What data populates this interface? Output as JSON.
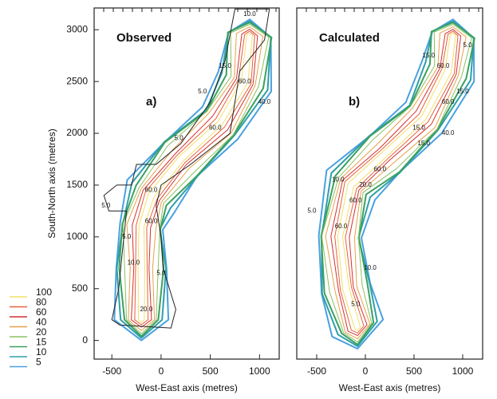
{
  "chart_data": [
    {
      "type": "contour",
      "title": "Observed",
      "panel_label": "a)",
      "xlabel": "West-East axis (metres)",
      "ylabel": "South-North axis (metres)",
      "xlim": [
        -680,
        1200
      ],
      "ylim": [
        -180,
        3210
      ],
      "xticks": [
        -500,
        0,
        500,
        1000
      ],
      "yticks": [
        0,
        500,
        1000,
        1500,
        2000,
        2500,
        3000
      ],
      "contour_labels": [
        "10.0",
        "15.0",
        "60.0",
        "40.0",
        "5.0",
        "5.0",
        "60.0",
        "60.0",
        "5.0",
        "60.0",
        "5.0",
        "10.0",
        "5.0",
        "20.0"
      ]
    },
    {
      "type": "contour",
      "title": "Calculated",
      "panel_label": "b)",
      "xlabel": "West-East axis (metres)",
      "xlim": [
        -705,
        1205
      ],
      "ylim": [
        -180,
        3210
      ],
      "xticks": [
        -500,
        0,
        500,
        1000
      ],
      "contour_labels": [
        "15.0",
        "5.0",
        "60.0",
        "60.0",
        "15.0",
        "15.0",
        "40.0",
        "15.0",
        "60.0",
        "20.0",
        "10.0",
        "5.0",
        "60.0",
        "60.0",
        "10.0",
        "5.0"
      ]
    }
  ],
  "legend": {
    "levels": [
      100,
      80,
      60,
      40,
      20,
      15,
      10,
      5
    ],
    "colors": [
      "#f2e06a",
      "#e8603c",
      "#d42f2f",
      "#e8a04a",
      "#8ac060",
      "#3aa060",
      "#2f9fa8",
      "#4aa0e0"
    ]
  }
}
